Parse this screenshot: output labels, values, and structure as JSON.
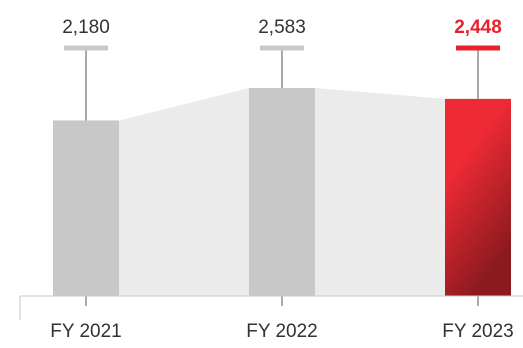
{
  "chart_data": {
    "type": "bar",
    "categories": [
      "FY 2021",
      "FY 2022",
      "FY 2023"
    ],
    "values": [
      2180,
      2583,
      2448
    ],
    "value_labels": [
      "2,180",
      "2,583",
      "2,448"
    ],
    "highlight_index": 2,
    "ylim": [
      0,
      3200
    ],
    "legend": "none",
    "grid": false,
    "colors": {
      "bar": "#c8c8c8",
      "highlight_top": "#ee2a35",
      "highlight_bottom": "#8a1a1e",
      "connector_area": "#ebebeb",
      "label": "#333333",
      "highlight_label": "#e8212e",
      "leader": "#555555",
      "cap": "#c8c8c8",
      "cap_highlight": "#e8212e",
      "axis": "#c8c8c8"
    }
  }
}
